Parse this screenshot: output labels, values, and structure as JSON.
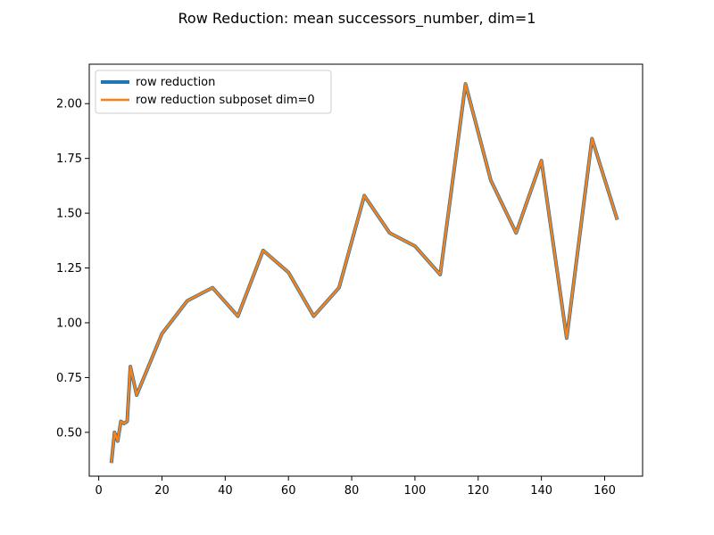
{
  "chart_data": {
    "type": "line",
    "title": "Row Reduction: mean successors_number, dim=1",
    "xlabel": "",
    "ylabel": "",
    "xlim": [
      -3.0,
      172.0
    ],
    "ylim": [
      0.3,
      2.18
    ],
    "xticks": [
      0,
      20,
      40,
      60,
      80,
      100,
      120,
      140,
      160
    ],
    "yticks": [
      0.5,
      0.75,
      1.0,
      1.25,
      1.5,
      1.75,
      2.0
    ],
    "grid": false,
    "legend": "top-left",
    "series": [
      {
        "name": "row reduction",
        "color": "#1f77b4",
        "x": [
          4,
          5,
          6,
          7,
          8,
          9,
          10,
          12,
          20,
          28,
          36,
          44,
          52,
          60,
          68,
          76,
          84,
          92,
          100,
          108,
          116,
          124,
          132,
          140,
          148,
          156,
          164
        ],
        "y": [
          0.36,
          0.5,
          0.46,
          0.55,
          0.54,
          0.55,
          0.8,
          0.67,
          0.95,
          1.1,
          1.16,
          1.03,
          1.33,
          1.23,
          1.03,
          1.16,
          1.58,
          1.41,
          1.35,
          1.22,
          2.09,
          1.65,
          1.41,
          1.74,
          0.93,
          1.84,
          1.47
        ]
      },
      {
        "name": "row reduction subposet dim=0",
        "color": "#ff7f0e",
        "x": [
          4,
          5,
          6,
          7,
          8,
          9,
          10,
          12,
          20,
          28,
          36,
          44,
          52,
          60,
          68,
          76,
          84,
          92,
          100,
          108,
          116,
          124,
          132,
          140,
          148,
          156,
          164
        ],
        "y": [
          0.36,
          0.5,
          0.46,
          0.55,
          0.54,
          0.55,
          0.8,
          0.67,
          0.95,
          1.1,
          1.16,
          1.03,
          1.33,
          1.23,
          1.03,
          1.16,
          1.58,
          1.41,
          1.35,
          1.22,
          2.09,
          1.65,
          1.41,
          1.74,
          0.93,
          1.84,
          1.47
        ]
      }
    ]
  }
}
